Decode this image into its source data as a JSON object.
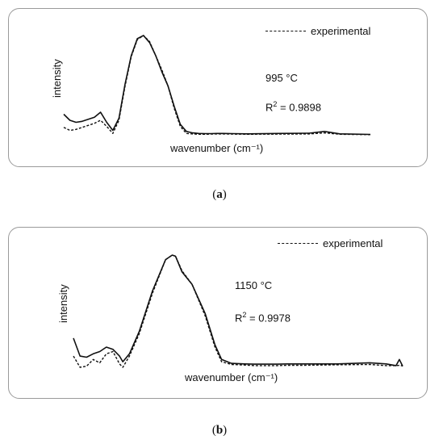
{
  "panels": [
    {
      "id": "a",
      "caption_prefix": "(",
      "caption_letter": "a",
      "caption_suffix": ")",
      "ylabel": "intensity",
      "xlabel": "wavenumber (cm⁻¹)",
      "legend": "experimental",
      "temperature": "995 °C",
      "r2_prefix": "R",
      "r2_sup": "2",
      "r2_value": " = 0.9898"
    },
    {
      "id": "b",
      "caption_prefix": "(",
      "caption_letter": "b",
      "caption_suffix": ")",
      "ylabel": "intensity",
      "xlabel": "wavenumber (cm⁻¹)",
      "legend": "experimental",
      "temperature": "1150 °C",
      "r2_prefix": "R",
      "r2_sup": "2",
      "r2_value": " = 0.9978"
    }
  ],
  "chart_data": [
    {
      "type": "line",
      "xlabel": "wavenumber (cm⁻¹)",
      "ylabel": "intensity",
      "legend_position": "top-right",
      "xlim": [
        0,
        100
      ],
      "ylim": [
        0,
        100
      ],
      "series": [
        {
          "name": "",
          "style": "solid",
          "x": [
            0,
            2,
            4,
            6,
            8,
            10,
            12,
            14,
            16,
            18,
            20,
            22,
            24,
            26,
            28,
            30,
            32,
            34,
            36,
            38,
            40,
            42,
            44,
            46,
            48,
            50,
            52,
            55,
            60,
            70,
            80,
            85,
            90,
            100
          ],
          "y": [
            22,
            16,
            14,
            15,
            17,
            19,
            24,
            14,
            6,
            18,
            52,
            80,
            97,
            100,
            93,
            80,
            64,
            50,
            30,
            12,
            5,
            3.5,
            3,
            2.8,
            2.8,
            3,
            3,
            2.8,
            2.6,
            3,
            3.2,
            5,
            2.6,
            2
          ]
        },
        {
          "name": "experimental",
          "style": "dashed",
          "x": [
            0,
            2,
            4,
            6,
            8,
            10,
            12,
            14,
            16,
            18,
            20,
            22,
            24,
            26,
            28,
            30,
            32,
            34,
            36,
            38,
            40,
            42,
            44,
            46,
            48,
            50,
            52,
            55,
            60,
            70,
            80,
            85,
            90,
            100
          ],
          "y": [
            9,
            6,
            7,
            9,
            11,
            13,
            16,
            10,
            3,
            16,
            50,
            79,
            96,
            100,
            94,
            80,
            66,
            50,
            28,
            10,
            3,
            2.5,
            2.2,
            2.2,
            2.3,
            2.5,
            2.5,
            2.3,
            2.2,
            2.3,
            2.5,
            3.5,
            2.2,
            1.8
          ]
        }
      ]
    },
    {
      "type": "line",
      "xlabel": "wavenumber (cm⁻¹)",
      "ylabel": "intensity",
      "legend_position": "top-right",
      "xlim": [
        0,
        100
      ],
      "ylim": [
        0,
        100
      ],
      "series": [
        {
          "name": "",
          "style": "solid",
          "x": [
            0,
            2,
            4,
            6,
            8,
            10,
            12,
            14,
            15,
            17,
            20,
            24,
            28,
            30,
            31,
            33,
            36,
            40,
            43,
            45,
            48,
            52,
            55,
            58,
            60,
            62,
            65,
            70,
            80,
            90,
            95,
            98,
            99,
            100
          ],
          "y": [
            26,
            10,
            9,
            12,
            14,
            18,
            16,
            10,
            5,
            12,
            32,
            68,
            96,
            100,
            99,
            85,
            74,
            48,
            20,
            7,
            3.5,
            3,
            2.8,
            2.8,
            2.8,
            2.8,
            3,
            3,
            3,
            4,
            3,
            1.5,
            7,
            1
          ]
        },
        {
          "name": "experimental",
          "style": "dashed",
          "x": [
            0,
            2,
            4,
            6,
            8,
            10,
            12,
            14,
            15,
            17,
            20,
            24,
            28,
            30,
            31,
            33,
            36,
            40,
            43,
            45,
            48,
            52,
            55,
            58,
            60,
            62,
            65,
            70,
            80,
            90,
            95,
            98,
            99,
            100
          ],
          "y": [
            10,
            0,
            1,
            7,
            4,
            12,
            14,
            3,
            0,
            10,
            30,
            66,
            96,
            100,
            99,
            86,
            74,
            46,
            18,
            5,
            2.5,
            2,
            1.5,
            1.5,
            1.5,
            1.5,
            1.8,
            1.8,
            2.2,
            2.5,
            1.5,
            1.5,
            1.8,
            1.2
          ]
        }
      ]
    }
  ]
}
